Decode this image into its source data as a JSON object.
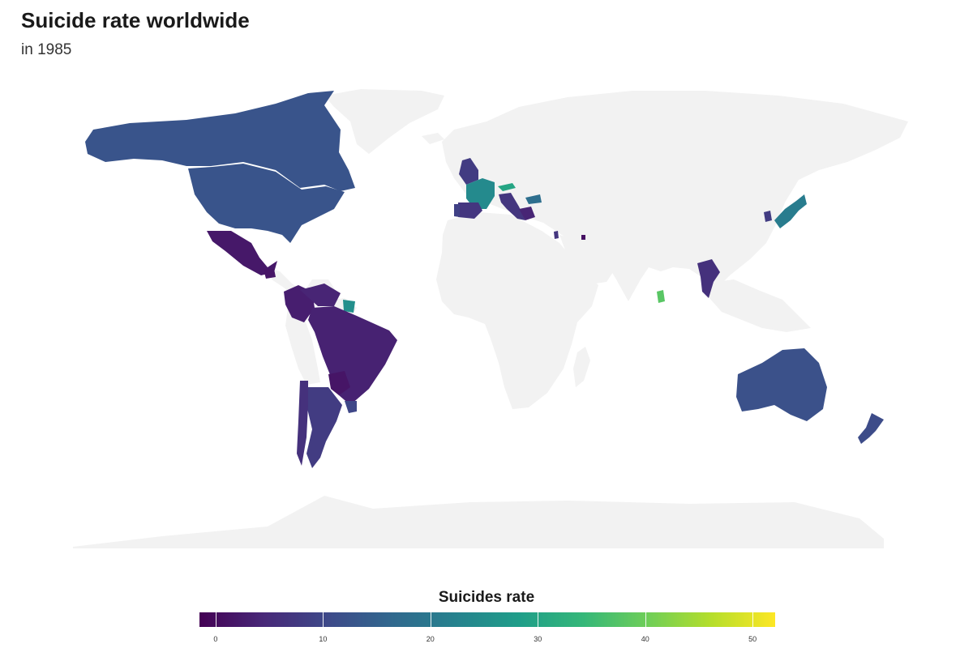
{
  "chart": {
    "title": "Suicide rate worldwide",
    "subtitle": "in 1985"
  },
  "legend": {
    "title": "Suicides rate",
    "ticks": [
      "0",
      "10",
      "20",
      "30",
      "40",
      "50"
    ],
    "tick_values": [
      0,
      10,
      20,
      30,
      40,
      50
    ],
    "range": [
      -1.5,
      52.1
    ],
    "palette": [
      "#440154",
      "#482878",
      "#3e4989",
      "#31688e",
      "#26828e",
      "#1f9e89",
      "#35b779",
      "#6ece58",
      "#b5de2b",
      "#fde725"
    ]
  },
  "colors": {
    "no_data": "#f2f2f2",
    "background": "#ffffff"
  },
  "chart_data": {
    "type": "choropleth",
    "title": "Suicide rate worldwide",
    "subtitle": "in 1985",
    "legend_title": "Suicides rate",
    "legend_placement": "bottom",
    "scale": "viridis",
    "values": [
      {
        "country": "United States",
        "rate": 12.5
      },
      {
        "country": "Canada",
        "rate": 12.5
      },
      {
        "country": "Mexico",
        "rate": 2.0
      },
      {
        "country": "Guatemala",
        "rate": 1.5
      },
      {
        "country": "Colombia",
        "rate": 3.0
      },
      {
        "country": "Venezuela",
        "rate": 4.0
      },
      {
        "country": "Suriname",
        "rate": 25.0
      },
      {
        "country": "Brazil",
        "rate": 3.5
      },
      {
        "country": "Paraguay",
        "rate": 1.5
      },
      {
        "country": "Uruguay",
        "rate": 10.0
      },
      {
        "country": "Argentina",
        "rate": 8.0
      },
      {
        "country": "Chile",
        "rate": 6.0
      },
      {
        "country": "United Kingdom",
        "rate": 8.0
      },
      {
        "country": "France",
        "rate": 24.0
      },
      {
        "country": "Spain",
        "rate": 7.0
      },
      {
        "country": "Portugal",
        "rate": 9.0
      },
      {
        "country": "Italy",
        "rate": 7.0
      },
      {
        "country": "Austria",
        "rate": 30.0
      },
      {
        "country": "Greece",
        "rate": 4.0
      },
      {
        "country": "Bulgaria",
        "rate": 18.0
      },
      {
        "country": "Israel",
        "rate": 7.0
      },
      {
        "country": "Kuwait",
        "rate": 1.0
      },
      {
        "country": "Sri Lanka",
        "rate": 38.0
      },
      {
        "country": "Thailand",
        "rate": 6.0
      },
      {
        "country": "South Korea",
        "rate": 8.0
      },
      {
        "country": "Japan",
        "rate": 21.0
      },
      {
        "country": "Australia",
        "rate": 12.0
      },
      {
        "country": "New Zealand",
        "rate": 11.0
      }
    ]
  }
}
